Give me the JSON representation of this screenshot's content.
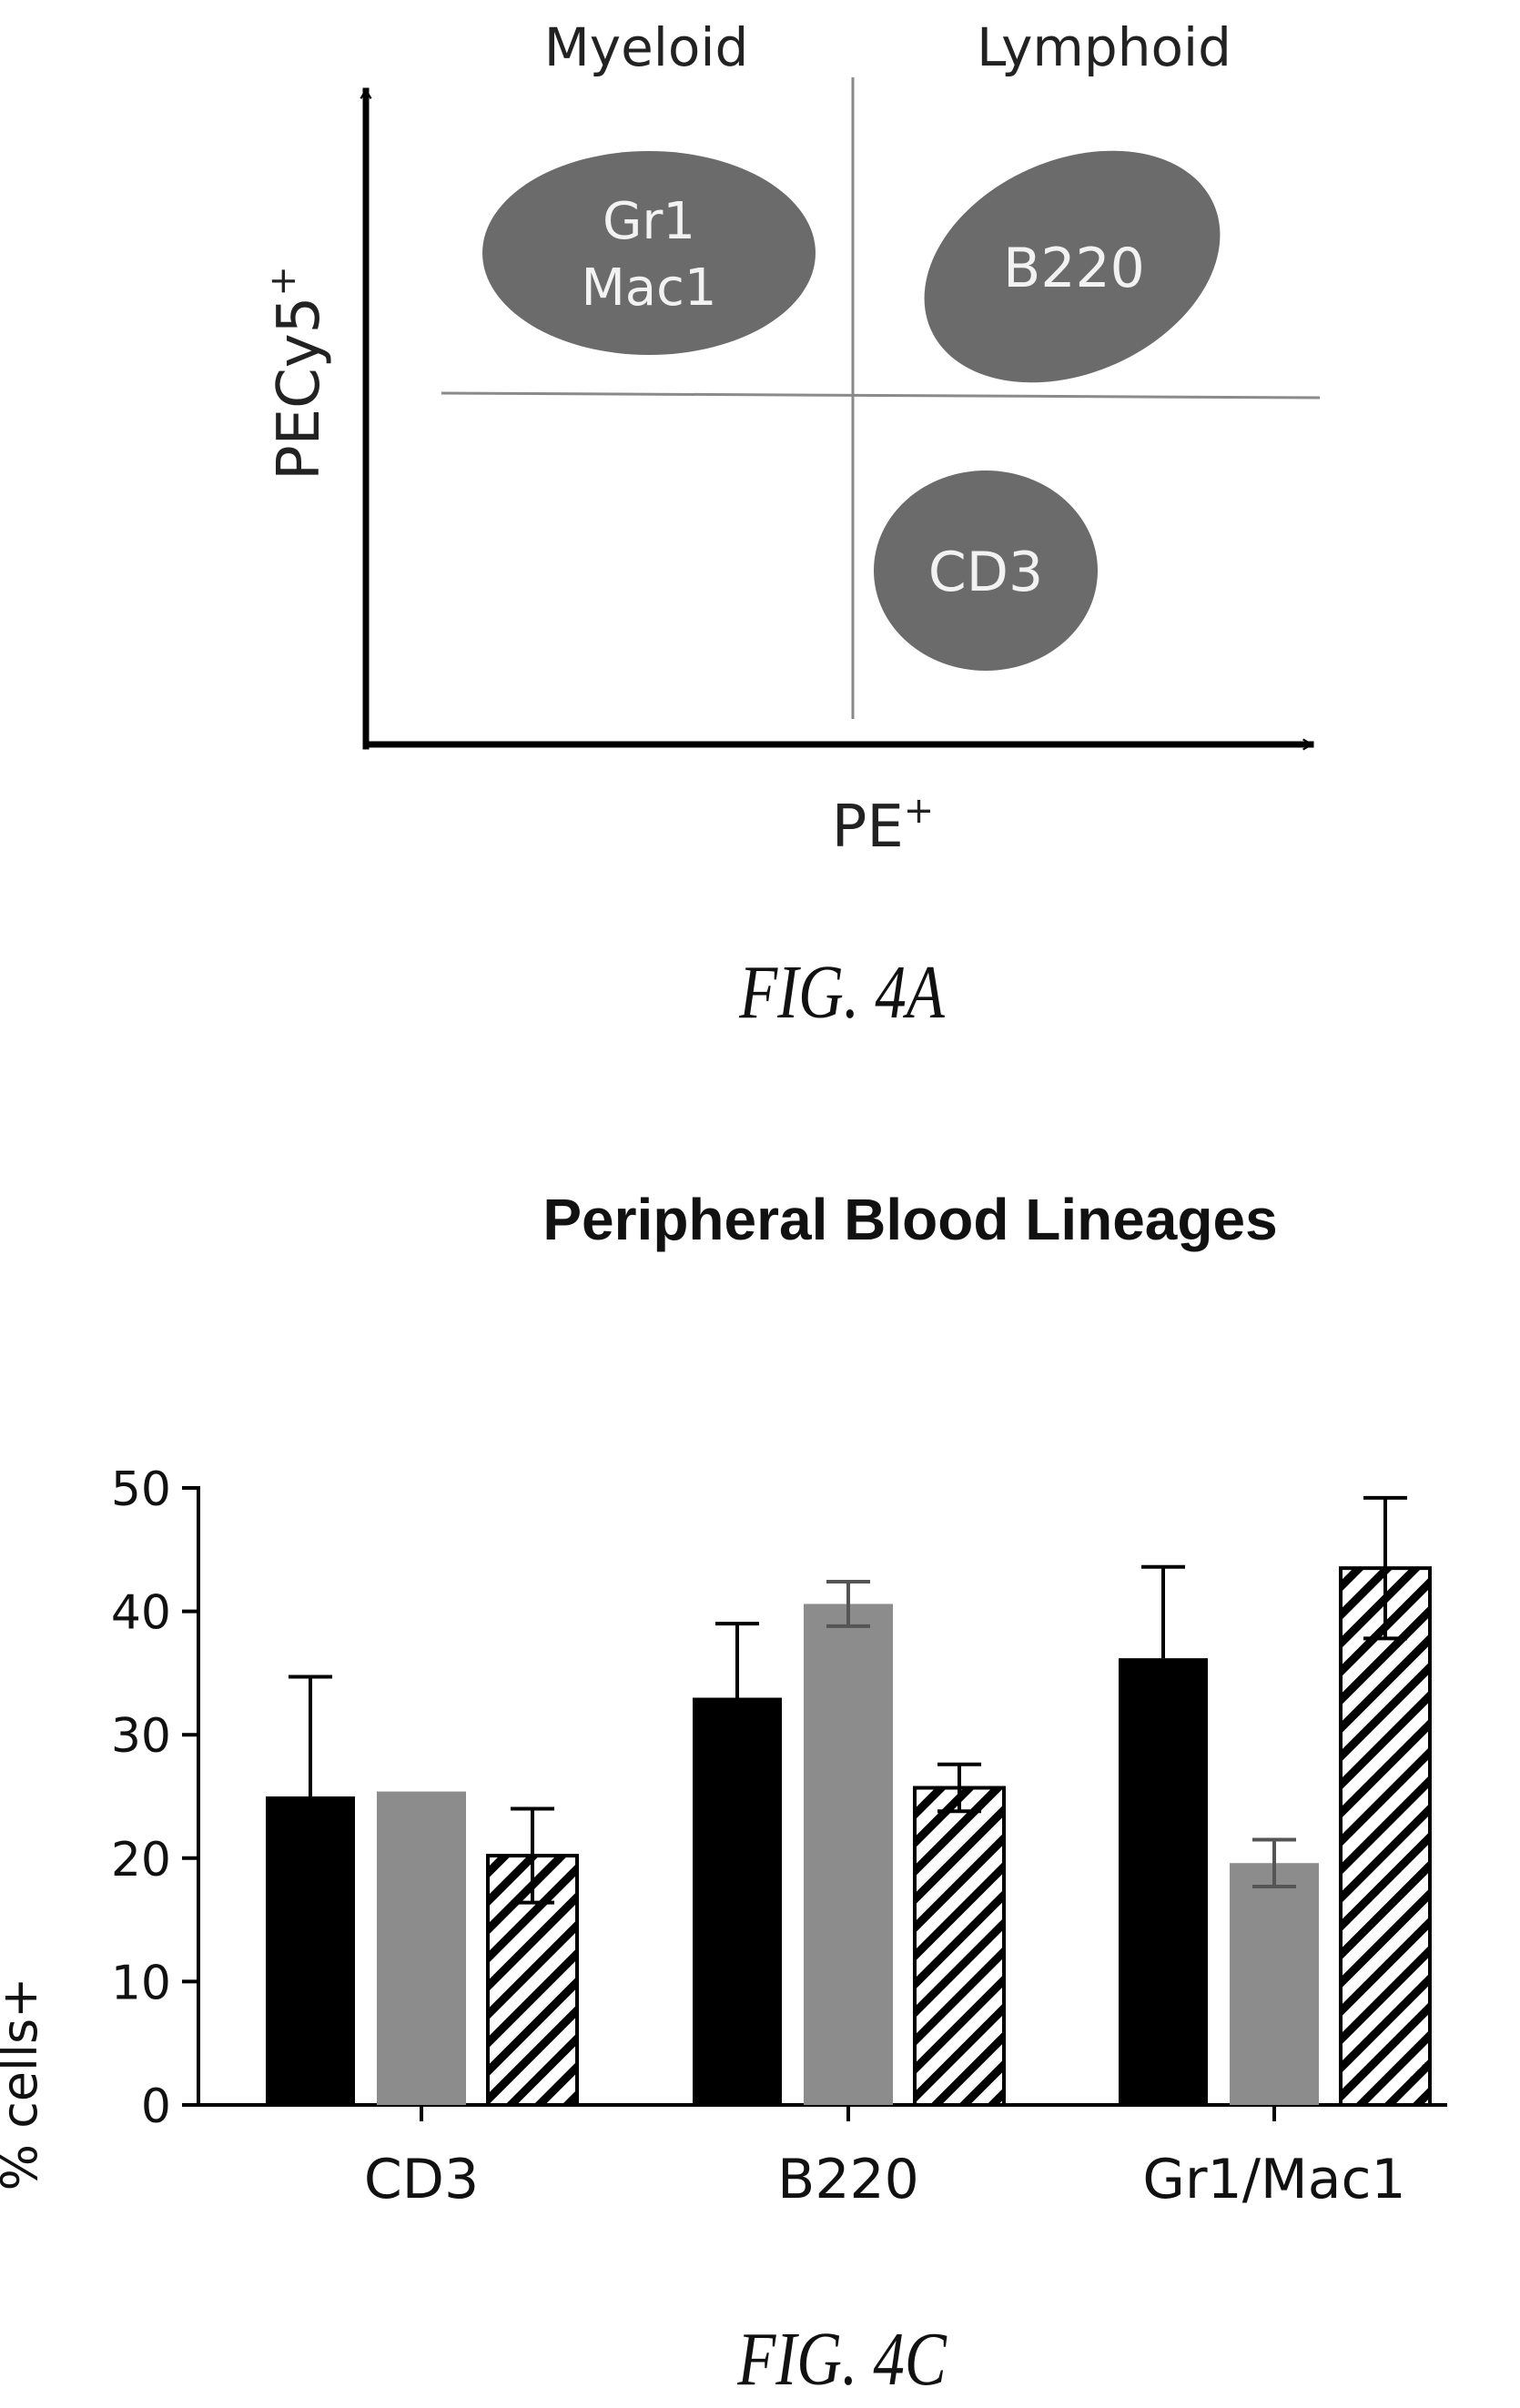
{
  "figure_4a": {
    "quadrant_labels": {
      "myeloid": "Myeloid",
      "lymphoid": "Lymphoid"
    },
    "y_axis_label": "PECy5",
    "y_axis_superscript": "+",
    "x_axis_label": "PE",
    "x_axis_superscript": "+",
    "populations": [
      {
        "lines": [
          "Gr1",
          "Mac1"
        ]
      },
      {
        "lines": [
          "B220"
        ]
      },
      {
        "lines": [
          "CD3"
        ]
      }
    ],
    "colors": {
      "population_fill": "#6b6b6b",
      "population_text": "#f2f2f2",
      "axis": "#000000",
      "gate_line": "#8a8a8a"
    },
    "caption": "FIG. 4A"
  },
  "chart_data": {
    "type": "bar",
    "title": "Peripheral Blood Lineages",
    "xlabel": "",
    "ylabel": "% cells+",
    "ylim": [
      0,
      50
    ],
    "yticks": [
      0,
      10,
      20,
      30,
      40,
      50
    ],
    "categories": [
      "CD3",
      "B220",
      "Gr1/Mac1"
    ],
    "series": [
      {
        "values": [
          25.0,
          33.0,
          36.2
        ],
        "errors": [
          9.7,
          6.0,
          7.4
        ],
        "fill": "#000000",
        "pattern": "solid"
      },
      {
        "values": [
          25.4,
          40.6,
          19.6
        ],
        "errors": [
          0.0,
          1.8,
          1.9
        ],
        "fill": "#8c8c8c",
        "pattern": "solid"
      },
      {
        "values": [
          20.2,
          25.7,
          43.5
        ],
        "errors": [
          3.8,
          1.9,
          5.7
        ],
        "fill": "#ffffff",
        "pattern": "hatched"
      }
    ],
    "grid": false,
    "legend": "none"
  },
  "figure_4c": {
    "caption": "FIG. 4C"
  }
}
